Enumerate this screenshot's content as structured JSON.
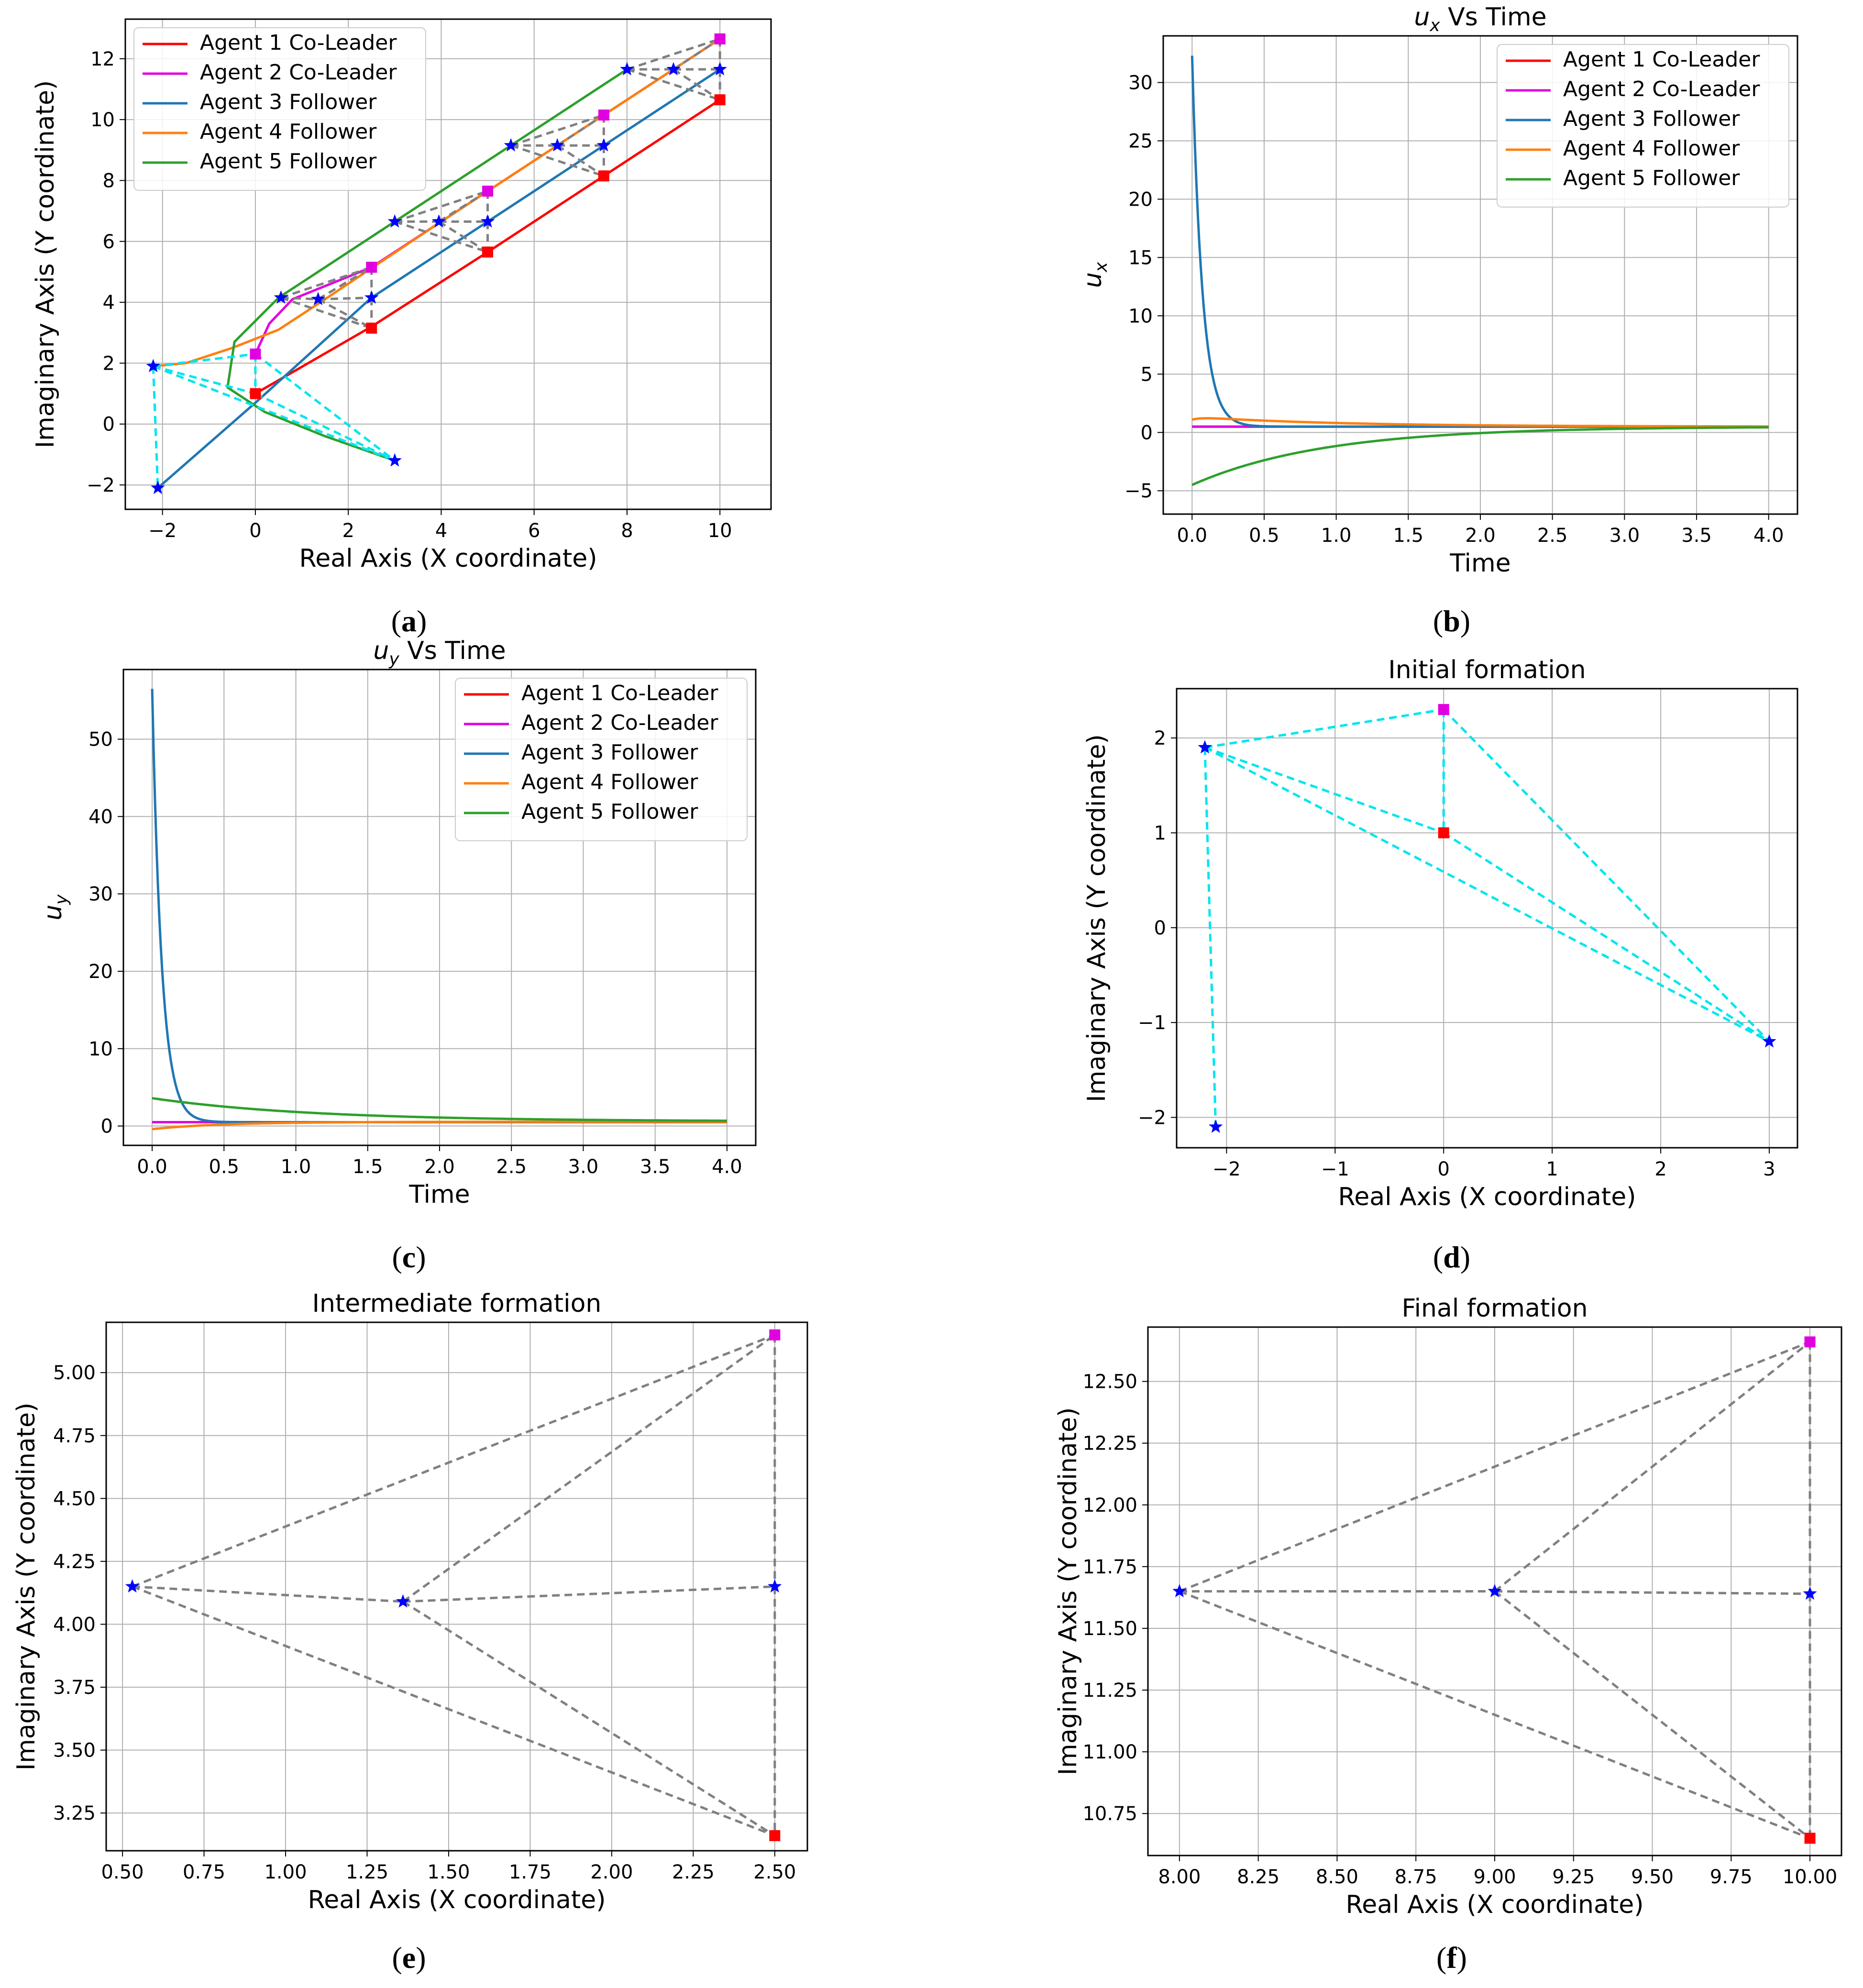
{
  "figure": {
    "description_labels": [
      "(a)",
      "(b)",
      "(c)",
      "(d)",
      "(e)",
      "(f)"
    ]
  },
  "colors": {
    "agent1": "#ff0000",
    "agent2": "#e000e0",
    "agent3": "#1f77b4",
    "agent4": "#ff7f0e",
    "agent5": "#2ca02c",
    "initial": "#00e5ee",
    "formation": "#808080",
    "marker": "#0000ff"
  },
  "chart_data": [
    {
      "id": "a",
      "caption": "(a)",
      "type": "line",
      "title": "",
      "xlabel": "Real Axis (X coordinate)",
      "ylabel": "Imaginary Axis (Y coordinate)",
      "xlim": [
        -2.8,
        11.1
      ],
      "ylim": [
        -2.8,
        13.3
      ],
      "xticks": [
        -2,
        0,
        2,
        4,
        6,
        8,
        10
      ],
      "yticks": [
        -2,
        0,
        2,
        4,
        6,
        8,
        10,
        12
      ],
      "xtick_labels": [
        "−2",
        "0",
        "2",
        "4",
        "6",
        "8",
        "10"
      ],
      "ytick_labels": [
        "−2",
        "0",
        "2",
        "4",
        "6",
        "8",
        "10",
        "12"
      ],
      "legend": [
        "Agent 1 Co-Leader",
        "Agent 2 Co-Leader",
        "Agent 3 Follower",
        "Agent 4 Follower",
        "Agent 5 Follower"
      ],
      "legend_loc": "upper-left",
      "series": [
        {
          "name": "Agent 1 Co-Leader",
          "color": "agent1",
          "points": [
            [
              0,
              1.0
            ],
            [
              2.5,
              3.2
            ],
            [
              5,
              5.65
            ],
            [
              7.5,
              8.15
            ],
            [
              10,
              10.65
            ]
          ]
        },
        {
          "name": "Agent 2 Co-Leader",
          "color": "agent2",
          "points": [
            [
              0,
              2.3
            ],
            [
              0.3,
              3.3
            ],
            [
              0.8,
              4.1
            ],
            [
              2.5,
              5.15
            ],
            [
              5,
              7.65
            ],
            [
              7.5,
              10.15
            ],
            [
              10,
              12.65
            ]
          ]
        },
        {
          "name": "Agent 3 Follower",
          "color": "agent3",
          "points": [
            [
              -2.1,
              -2.1
            ],
            [
              0,
              0.7
            ],
            [
              2.5,
              4.15
            ],
            [
              5,
              6.65
            ],
            [
              7.5,
              9.15
            ],
            [
              10,
              11.65
            ]
          ]
        },
        {
          "name": "Agent 4 Follower",
          "color": "agent4",
          "points": [
            [
              -2.2,
              1.9
            ],
            [
              -1.5,
              2.0
            ],
            [
              -0.5,
              2.5
            ],
            [
              0.5,
              3.1
            ],
            [
              1.4,
              4.0
            ],
            [
              4,
              6.65
            ],
            [
              6.5,
              9.15
            ],
            [
              9,
              11.65
            ],
            [
              10,
              12.65
            ]
          ]
        },
        {
          "name": "Agent 5 Follower",
          "color": "agent5",
          "points": [
            [
              3,
              -1.2
            ],
            [
              1.5,
              -0.4
            ],
            [
              0.2,
              0.4
            ],
            [
              -0.6,
              1.2
            ],
            [
              -0.45,
              2.7
            ],
            [
              0.5,
              4.15
            ],
            [
              3,
              6.65
            ],
            [
              5.5,
              9.15
            ],
            [
              8,
              11.65
            ]
          ]
        }
      ],
      "initial_formation": {
        "points": [
          [
            0,
            1.0
          ],
          [
            0,
            2.3
          ],
          [
            -2.1,
            -2.1
          ],
          [
            -2.2,
            1.9
          ],
          [
            3,
            -1.2
          ]
        ],
        "edges": [
          [
            3,
            1
          ],
          [
            3,
            0
          ],
          [
            3,
            4
          ],
          [
            3,
            2
          ],
          [
            1,
            0
          ],
          [
            1,
            4
          ],
          [
            0,
            4
          ]
        ]
      },
      "snapshots": [
        {
          "points": [
            [
              2.5,
              3.15
            ],
            [
              2.5,
              5.15
            ],
            [
              2.5,
              4.15
            ],
            [
              1.35,
              4.1
            ],
            [
              0.55,
              4.15
            ]
          ]
        },
        {
          "points": [
            [
              5,
              5.65
            ],
            [
              5,
              7.65
            ],
            [
              5,
              6.65
            ],
            [
              3.95,
              6.65
            ],
            [
              3,
              6.65
            ]
          ]
        },
        {
          "points": [
            [
              7.5,
              8.15
            ],
            [
              7.5,
              10.15
            ],
            [
              7.5,
              9.15
            ],
            [
              6.5,
              9.15
            ],
            [
              5.5,
              9.15
            ]
          ]
        },
        {
          "points": [
            [
              10,
              10.65
            ],
            [
              10,
              12.65
            ],
            [
              10,
              11.65
            ],
            [
              9,
              11.65
            ],
            [
              8,
              11.65
            ]
          ]
        }
      ],
      "formation_edges": [
        [
          4,
          1
        ],
        [
          4,
          3
        ],
        [
          4,
          0
        ],
        [
          3,
          1
        ],
        [
          3,
          2
        ],
        [
          3,
          0
        ],
        [
          1,
          2
        ],
        [
          2,
          0
        ]
      ]
    },
    {
      "id": "b",
      "caption": "(b)",
      "type": "line",
      "title": "u_x Vs Time",
      "title_main": "u",
      "title_sub": "x",
      "title_rest": " Vs Time",
      "xlabel": "Time",
      "ylabel": "u",
      "ylabel_sub": "x",
      "xlim": [
        -0.2,
        4.2
      ],
      "ylim": [
        -7.0,
        34.0
      ],
      "xticks": [
        0,
        0.5,
        1,
        1.5,
        2,
        2.5,
        3,
        3.5,
        4
      ],
      "yticks": [
        -5,
        0,
        5,
        10,
        15,
        20,
        25,
        30
      ],
      "xtick_labels": [
        "0.0",
        "0.5",
        "1.0",
        "1.5",
        "2.0",
        "2.5",
        "3.0",
        "3.5",
        "4.0"
      ],
      "ytick_labels": [
        "−5",
        "0",
        "5",
        "10",
        "15",
        "20",
        "25",
        "30"
      ],
      "legend": [
        "Agent 1 Co-Leader",
        "Agent 2 Co-Leader",
        "Agent 3 Follower",
        "Agent 4 Follower",
        "Agent 5 Follower"
      ],
      "legend_loc": "upper-right",
      "series": [
        {
          "name": "Agent 1 Co-Leader",
          "color": "agent1",
          "fn": "const",
          "a": 0.5
        },
        {
          "name": "Agent 2 Co-Leader",
          "color": "agent2",
          "fn": "const",
          "a": 0.5
        },
        {
          "name": "Agent 3 Follower",
          "color": "agent3",
          "fn": "exp",
          "start": 32.3,
          "end": 0.5,
          "rate": 14
        },
        {
          "name": "Agent 4 Follower",
          "color": "agent4",
          "fn": "hump",
          "start": 1.1,
          "peak": 1.35,
          "end": 0.5,
          "rate": 1.0
        },
        {
          "name": "Agent 5 Follower",
          "color": "agent5",
          "fn": "exp",
          "start": -4.5,
          "end": 0.5,
          "rate": 1.1
        }
      ]
    },
    {
      "id": "c",
      "caption": "(c)",
      "type": "line",
      "title": "u_y Vs Time",
      "title_main": "u",
      "title_sub": "y",
      "title_rest": " Vs Time",
      "xlabel": "Time",
      "ylabel": "u",
      "ylabel_sub": "y",
      "xlim": [
        -0.2,
        4.2
      ],
      "ylim": [
        -2.5,
        59.0
      ],
      "xticks": [
        0,
        0.5,
        1,
        1.5,
        2,
        2.5,
        3,
        3.5,
        4
      ],
      "yticks": [
        0,
        10,
        20,
        30,
        40,
        50
      ],
      "xtick_labels": [
        "0.0",
        "0.5",
        "1.0",
        "1.5",
        "2.0",
        "2.5",
        "3.0",
        "3.5",
        "4.0"
      ],
      "ytick_labels": [
        "0",
        "10",
        "20",
        "30",
        "40",
        "50"
      ],
      "legend": [
        "Agent 1 Co-Leader",
        "Agent 2 Co-Leader",
        "Agent 3 Follower",
        "Agent 4 Follower",
        "Agent 5 Follower"
      ],
      "legend_loc": "upper-right",
      "series": [
        {
          "name": "Agent 1 Co-Leader",
          "color": "agent1",
          "fn": "const",
          "a": 0.5
        },
        {
          "name": "Agent 2 Co-Leader",
          "color": "agent2",
          "fn": "const",
          "a": 0.5
        },
        {
          "name": "Agent 3 Follower",
          "color": "agent3",
          "fn": "exp",
          "start": 56.5,
          "end": 0.5,
          "rate": 15
        },
        {
          "name": "Agent 4 Follower",
          "color": "agent4",
          "fn": "exp",
          "start": -0.4,
          "end": 0.55,
          "rate": 2.0
        },
        {
          "name": "Agent 5 Follower",
          "color": "agent5",
          "fn": "exp",
          "start": 3.6,
          "end": 0.6,
          "rate": 0.9
        }
      ]
    },
    {
      "id": "d",
      "caption": "(d)",
      "type": "scatter",
      "title": "Initial formation",
      "xlabel": "Real Axis (X coordinate)",
      "ylabel": "Imaginary Axis (Y coordinate)",
      "xlim": [
        -2.46,
        3.26
      ],
      "ylim": [
        -2.32,
        2.52
      ],
      "xticks": [
        -2,
        -1,
        0,
        1,
        2,
        3
      ],
      "yticks": [
        -2,
        -1,
        0,
        1,
        2
      ],
      "xtick_labels": [
        "−2",
        "−1",
        "0",
        "1",
        "2",
        "3"
      ],
      "ytick_labels": [
        "−2",
        "−1",
        "0",
        "1",
        "2"
      ],
      "edge_color": "initial",
      "points": [
        [
          0,
          1.0
        ],
        [
          0,
          2.3
        ],
        [
          -2.1,
          -2.1
        ],
        [
          -2.2,
          1.9
        ],
        [
          3,
          -1.2
        ]
      ],
      "edges": [
        [
          3,
          1
        ],
        [
          3,
          0
        ],
        [
          3,
          4
        ],
        [
          3,
          2
        ],
        [
          1,
          0
        ],
        [
          1,
          4
        ],
        [
          0,
          4
        ]
      ]
    },
    {
      "id": "e",
      "caption": "(e)",
      "type": "scatter",
      "title": "Intermediate formation",
      "xlabel": "Real Axis (X coordinate)",
      "ylabel": "Imaginary Axis (Y coordinate)",
      "xlim": [
        0.45,
        2.6
      ],
      "ylim": [
        3.1,
        5.2
      ],
      "xticks": [
        0.5,
        0.75,
        1.0,
        1.25,
        1.5,
        1.75,
        2.0,
        2.25,
        2.5
      ],
      "yticks": [
        3.25,
        3.5,
        3.75,
        4.0,
        4.25,
        4.5,
        4.75,
        5.0
      ],
      "xtick_labels": [
        "0.50",
        "0.75",
        "1.00",
        "1.25",
        "1.50",
        "1.75",
        "2.00",
        "2.25",
        "2.50"
      ],
      "ytick_labels": [
        "3.25",
        "3.50",
        "3.75",
        "4.00",
        "4.25",
        "4.50",
        "4.75",
        "5.00"
      ],
      "edge_color": "formation",
      "points": [
        [
          2.5,
          3.16
        ],
        [
          2.5,
          5.15
        ],
        [
          2.5,
          4.15
        ],
        [
          1.36,
          4.09
        ],
        [
          0.53,
          4.15
        ]
      ],
      "edges": [
        [
          4,
          1
        ],
        [
          4,
          3
        ],
        [
          4,
          0
        ],
        [
          3,
          1
        ],
        [
          3,
          2
        ],
        [
          3,
          0
        ],
        [
          1,
          2
        ],
        [
          2,
          0
        ]
      ]
    },
    {
      "id": "f",
      "caption": "(f)",
      "type": "scatter",
      "title": "Final formation",
      "xlabel": "Real Axis (X coordinate)",
      "ylabel": "Imaginary Axis (Y coordinate)",
      "xlim": [
        7.9,
        10.1
      ],
      "ylim": [
        10.58,
        12.72
      ],
      "xticks": [
        8.0,
        8.25,
        8.5,
        8.75,
        9.0,
        9.25,
        9.5,
        9.75,
        10.0
      ],
      "yticks": [
        10.75,
        11.0,
        11.25,
        11.5,
        11.75,
        12.0,
        12.25,
        12.5
      ],
      "xtick_labels": [
        "8.00",
        "8.25",
        "8.50",
        "8.75",
        "9.00",
        "9.25",
        "9.50",
        "9.75",
        "10.00"
      ],
      "ytick_labels": [
        "10.75",
        "11.00",
        "11.25",
        "11.50",
        "11.75",
        "12.00",
        "12.25",
        "12.50"
      ],
      "edge_color": "formation",
      "points": [
        [
          10,
          10.65
        ],
        [
          10,
          12.66
        ],
        [
          10,
          11.64
        ],
        [
          9.0,
          11.65
        ],
        [
          8.0,
          11.65
        ]
      ],
      "edges": [
        [
          4,
          1
        ],
        [
          4,
          3
        ],
        [
          4,
          0
        ],
        [
          3,
          1
        ],
        [
          3,
          2
        ],
        [
          3,
          0
        ],
        [
          1,
          2
        ],
        [
          2,
          0
        ]
      ]
    }
  ]
}
